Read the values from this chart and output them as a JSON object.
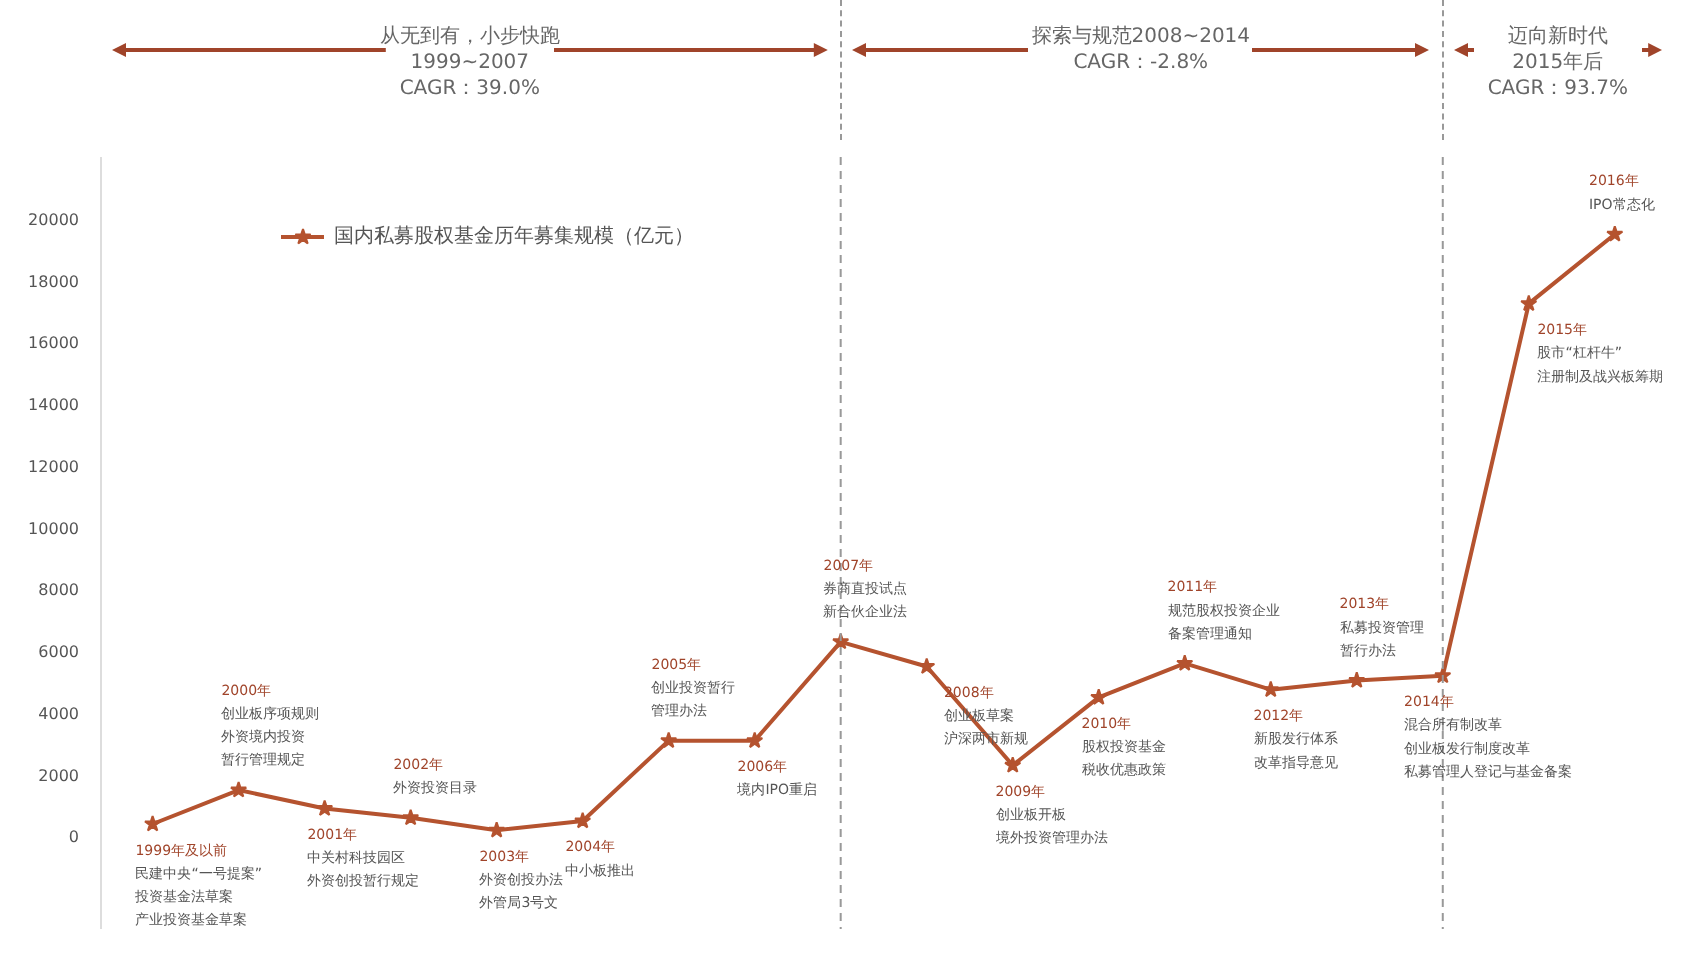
{
  "chart_data": {
    "type": "line",
    "categories": [
      null,
      null,
      null,
      null,
      null,
      null,
      null,
      null,
      null,
      null,
      null,
      null,
      null,
      null,
      null,
      null,
      null,
      null
    ],
    "series": [
      {
        "name": "国内私募股权基金历年募集规模（亿元）",
        "color": "#b5532f",
        "values": [
          400,
          1500,
          900,
          600,
          200,
          500,
          3100,
          3100,
          6300,
          5500,
          2300,
          4500,
          5600,
          4750,
          5050,
          5200,
          17250,
          19500
        ]
      }
    ],
    "ylim": [
      -3000,
      22000
    ],
    "yticks": [
      0,
      2000,
      4000,
      6000,
      8000,
      10000,
      12000,
      14000,
      16000,
      18000,
      20000
    ],
    "tick_labels": "y",
    "grid": false,
    "legend": "top left",
    "marker": "star",
    "line_style": "solid",
    "annotations": [
      "从无到有，小步快跑",
      "1999~2007",
      "CAGR：39.0%",
      "探索与规范2008~2014",
      "CAGR：-2.8%",
      "迈向新时代",
      "2015年后",
      "CAGR：93.7%",
      "1999年及以前",
      "民建中央“一号提案”",
      "投资基金法草案",
      "产业投资基金草案",
      "2000年",
      "创业板序项规则",
      "外资境内投资",
      "暂行管理规定",
      "2001年",
      "中关村科技园区",
      "外资创投暂行规定",
      "2002年",
      "外资投资目录",
      "2003年",
      "外资创投办法",
      "外管局3号文",
      "2004年",
      "中小板推出",
      "2005年",
      "创业投资暂行",
      "管理办法",
      "2006年",
      "境内IPO重启",
      "2007年",
      "券商直投试点",
      "新合伙企业法",
      "2008年",
      "创业板草案",
      "沪深两市新规",
      "2009年",
      "创业板开板",
      "境外投资管理办法",
      "2010年",
      "股权投资基金",
      "税收优惠政策",
      "2011年",
      "规范股权投资企业",
      "备案管理通知",
      "2012年",
      "新股发行体系",
      "改革指导意见",
      "2013年",
      "私募投资管理",
      "暂行办法",
      "2014年",
      "混合所有制改革",
      "创业板发行制度改革",
      "私募管理人登记与基金备案",
      "2015年",
      "股市“杠杆牛”",
      "注册制及战兴板筹期",
      "2016年",
      "IPO常态化"
    ]
  }
}
